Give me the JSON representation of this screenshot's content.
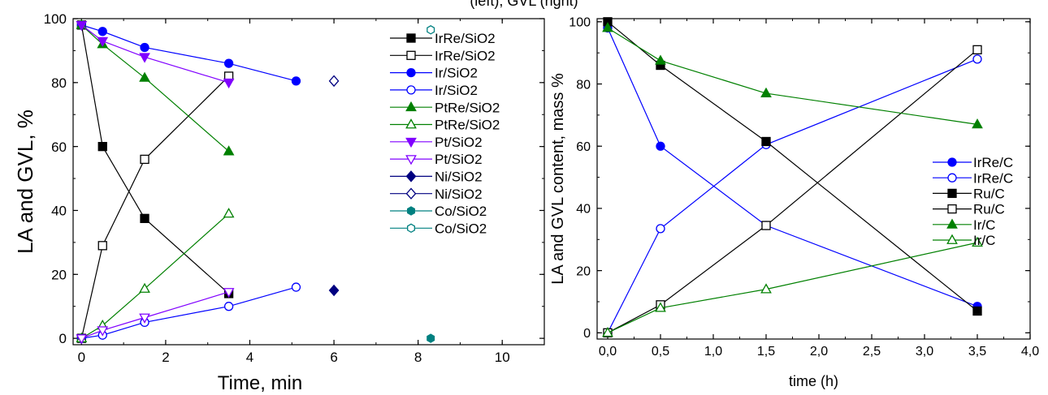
{
  "caption": "(left), GVL (right)",
  "chart_data": [
    {
      "type": "scatter",
      "xlabel": "Time, min",
      "ylabel": "LA and GVL, %",
      "xlim": [
        -0.2,
        11
      ],
      "ylim": [
        -2,
        100
      ],
      "x_ticks": [
        "0",
        "2",
        "4",
        "6",
        "8",
        "10"
      ],
      "y_ticks": [
        "0",
        "20",
        "40",
        "60",
        "80",
        "100"
      ],
      "legend_position": "right-center",
      "series": [
        {
          "name": "IrRe/SiO2",
          "color": "#000000",
          "marker": "square",
          "filled": true,
          "x": [
            0,
            0.5,
            1.5,
            3.5
          ],
          "y": [
            98,
            60,
            37.5,
            14
          ]
        },
        {
          "name": "IrRe/SiO2",
          "color": "#000000",
          "marker": "square",
          "filled": false,
          "x": [
            0,
            0.5,
            1.5,
            3.5
          ],
          "y": [
            0,
            29,
            56,
            82
          ]
        },
        {
          "name": "Ir/SiO2",
          "color": "#0000ff",
          "marker": "circle",
          "filled": true,
          "x": [
            0,
            0.5,
            1.5,
            3.5,
            5.1
          ],
          "y": [
            98,
            96,
            91,
            86,
            80.5
          ]
        },
        {
          "name": "Ir/SiO2",
          "color": "#0000ff",
          "marker": "circle",
          "filled": false,
          "x": [
            0,
            0.5,
            1.5,
            3.5,
            5.1
          ],
          "y": [
            0,
            1,
            5,
            10,
            16
          ]
        },
        {
          "name": "PtRe/SiO2",
          "color": "#008000",
          "marker": "triangle-up",
          "filled": true,
          "x": [
            0,
            0.5,
            1.5,
            3.5
          ],
          "y": [
            98,
            92,
            81.5,
            58.5
          ]
        },
        {
          "name": "PtRe/SiO2",
          "color": "#008000",
          "marker": "triangle-up",
          "filled": false,
          "x": [
            0,
            0.5,
            1.5,
            3.5
          ],
          "y": [
            0,
            4,
            15.5,
            39
          ]
        },
        {
          "name": "Pt/SiO2",
          "color": "#8000ff",
          "marker": "triangle-down",
          "filled": true,
          "x": [
            0,
            0.5,
            1.5,
            3.5
          ],
          "y": [
            98,
            93,
            88,
            80
          ]
        },
        {
          "name": "Pt/SiO2",
          "color": "#8000ff",
          "marker": "triangle-down",
          "filled": false,
          "x": [
            0,
            0.5,
            1.5,
            3.5
          ],
          "y": [
            0,
            2.5,
            6.5,
            14.5
          ]
        },
        {
          "name": "Ni/SiO2",
          "color": "#000080",
          "marker": "diamond",
          "filled": true,
          "x": [
            6
          ],
          "y": [
            15
          ]
        },
        {
          "name": "Ni/SiO2",
          "color": "#000080",
          "marker": "diamond",
          "filled": false,
          "x": [
            6
          ],
          "y": [
            80.5
          ]
        },
        {
          "name": "Co/SiO2",
          "color": "#008080",
          "marker": "hexagon",
          "filled": true,
          "x": [
            8.3
          ],
          "y": [
            0
          ]
        },
        {
          "name": "Co/SiO2",
          "color": "#008080",
          "marker": "hexagon",
          "filled": false,
          "x": [
            8.3
          ],
          "y": [
            96.5
          ]
        }
      ]
    },
    {
      "type": "line",
      "xlabel": "time (h)",
      "ylabel": "LA and GVL content, mass %",
      "xlim": [
        -0.1,
        4.0
      ],
      "ylim": [
        -2,
        101
      ],
      "x_ticks": [
        "0,0",
        "0,5",
        "1,0",
        "1,5",
        "2,0",
        "2,5",
        "3,0",
        "3,5",
        "4,0"
      ],
      "y_ticks": [
        "0",
        "20",
        "40",
        "60",
        "80",
        "100"
      ],
      "legend_position": "right-center",
      "series": [
        {
          "name": "IrRe/C",
          "color": "#0000ff",
          "marker": "circle",
          "filled": true,
          "x": [
            0,
            0.5,
            1.5,
            3.5
          ],
          "y": [
            98,
            60,
            34.5,
            8.5
          ]
        },
        {
          "name": "IrRe/C",
          "color": "#0000ff",
          "marker": "circle",
          "filled": false,
          "x": [
            0,
            0.5,
            1.5,
            3.5
          ],
          "y": [
            0,
            33.5,
            60.5,
            88
          ]
        },
        {
          "name": "Ru/C",
          "color": "#000000",
          "marker": "square",
          "filled": true,
          "x": [
            0,
            0.5,
            1.5,
            3.5
          ],
          "y": [
            100,
            86,
            61.5,
            7
          ]
        },
        {
          "name": "Ru/C",
          "color": "#000000",
          "marker": "square",
          "filled": false,
          "x": [
            0,
            0.5,
            1.5,
            3.5
          ],
          "y": [
            0,
            9,
            34.5,
            91
          ]
        },
        {
          "name": "Ir/C",
          "color": "#008000",
          "marker": "triangle-up",
          "filled": true,
          "x": [
            0,
            0.5,
            1.5,
            3.5
          ],
          "y": [
            98,
            87.5,
            77,
            67
          ]
        },
        {
          "name": "Ir/C",
          "color": "#008000",
          "marker": "triangle-up",
          "filled": false,
          "x": [
            0,
            0.5,
            1.5,
            3.5
          ],
          "y": [
            0,
            8,
            14,
            29
          ]
        }
      ]
    }
  ]
}
